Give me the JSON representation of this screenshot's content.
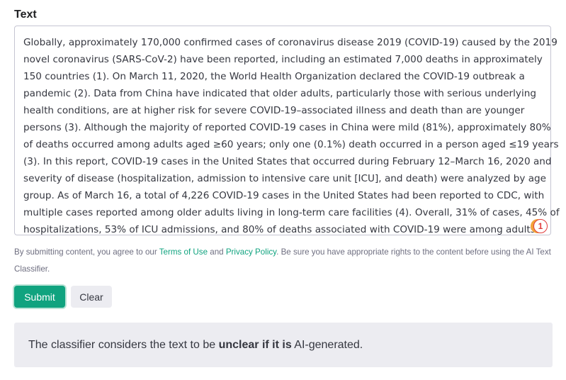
{
  "form": {
    "label": "Text",
    "text_lines": [
      "Globally, approximately 170,000 confirmed cases of coronavirus disease 2019 (COVID-19) caused by the 2019",
      "novel coronavirus (SARS-CoV-2) have been reported, including an estimated 7,000 deaths in approximately",
      "150 countries (1). On March 11, 2020, the World Health Organization declared the COVID-19 outbreak a",
      "pandemic (2). Data from China have indicated that older adults, particularly those with serious underlying",
      "health conditions, are at higher risk for severe COVID-19–associated illness and death than are younger",
      "persons (3). Although the majority of reported COVID-19 cases in China were mild (81%), approximately 80%",
      "of deaths occurred among adults aged ≥60 years; only one (0.1%) death occurred in a person aged ≤19 years",
      "(3). In this report, COVID-19 cases in the United States that occurred during February 12–March 16, 2020 and",
      "severity of disease (hospitalization, admission to intensive care unit [ICU], and death) were analyzed by age",
      "group. As of March 16, a total of 4,226 COVID-19 cases in the United States had been reported to CDC, with",
      "multiple cases reported among older adults living in long-term care facilities (4). Overall, 31% of cases, 45% of",
      "hospitalizations, 53% of ICU admissions, and 80% of deaths associated with COVID-19 were among adults"
    ],
    "badge": "1",
    "notice": {
      "before": "By submitting content, you agree to our ",
      "terms": "Terms of Use",
      "and": " and ",
      "privacy": "Privacy Policy",
      "after": ". Be sure you have appropriate rights to the content before using the AI Text Classifier."
    },
    "submit": "Submit",
    "clear": "Clear"
  },
  "result": {
    "before": "The classifier considers the text to be ",
    "emphasis": "unclear if it is",
    "after": " AI-generated."
  }
}
